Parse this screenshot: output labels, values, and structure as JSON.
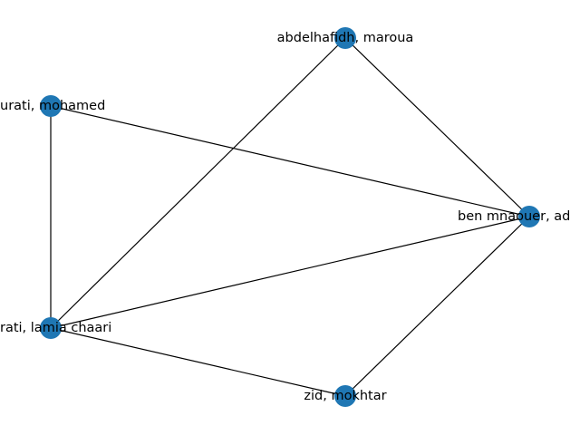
{
  "graph": {
    "nodes": [
      {
        "id": "abdelhafidh",
        "label": "abdelhafidh, maroua"
      },
      {
        "id": "mohamed",
        "label": "urati, mohamed"
      },
      {
        "id": "benmnaouer",
        "label": "ben mnaouer, ad"
      },
      {
        "id": "lamia",
        "label": "rati, lamia chaari"
      },
      {
        "id": "zid",
        "label": "zid, mokhtar"
      }
    ],
    "edges": [
      {
        "source": "abdelhafidh",
        "target": "benmnaouer"
      },
      {
        "source": "abdelhafidh",
        "target": "lamia"
      },
      {
        "source": "mohamed",
        "target": "benmnaouer"
      },
      {
        "source": "mohamed",
        "target": "lamia"
      },
      {
        "source": "lamia",
        "target": "benmnaouer"
      },
      {
        "source": "lamia",
        "target": "zid"
      },
      {
        "source": "zid",
        "target": "benmnaouer"
      }
    ],
    "colors": {
      "node": "#1f77b4",
      "edge": "#000000",
      "label": "#000000"
    }
  }
}
